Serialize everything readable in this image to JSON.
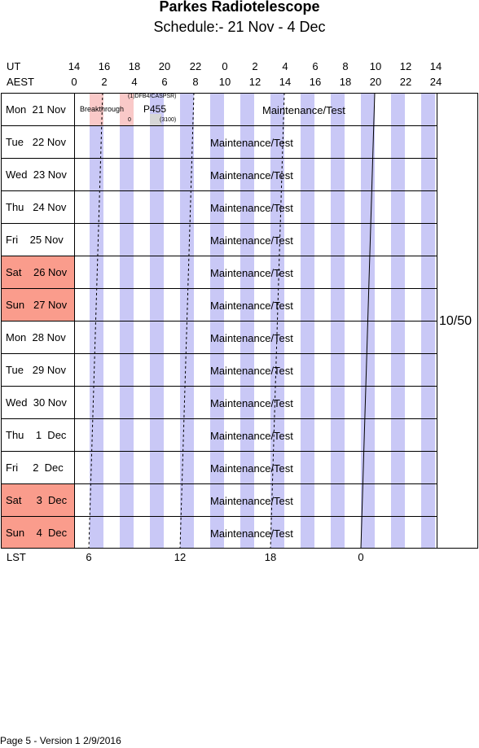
{
  "header": {
    "title": "Parkes Radiotelescope",
    "subtitle": "Schedule:- 21 Nov - 4  Dec"
  },
  "axes": {
    "ut_label": "UT",
    "aest_label": "AEST",
    "lst_label": "LST",
    "ut_ticks": [
      "14",
      "16",
      "18",
      "20",
      "22",
      "0",
      "2",
      "4",
      "6",
      "8",
      "10",
      "12",
      "14"
    ],
    "aest_ticks": [
      "0",
      "2",
      "4",
      "6",
      "8",
      "10",
      "12",
      "14",
      "16",
      "18",
      "20",
      "22",
      "24"
    ],
    "lst_ticks": [
      "6",
      "12",
      "18",
      "0"
    ]
  },
  "rows": [
    {
      "label": "Mon  21 Nov",
      "weekend": false,
      "activity": "Maintenance/Test"
    },
    {
      "label": "Tue   22 Nov",
      "weekend": false,
      "activity": "Maintenance/Test"
    },
    {
      "label": "Wed  23 Nov",
      "weekend": false,
      "activity": "Maintenance/Test"
    },
    {
      "label": "Thu   24 Nov",
      "weekend": false,
      "activity": "Maintenance/Test"
    },
    {
      "label": "Fri    25 Nov",
      "weekend": false,
      "activity": "Maintenance/Test"
    },
    {
      "label": "Sat    26 Nov",
      "weekend": true,
      "activity": "Maintenance/Test"
    },
    {
      "label": "Sun   27 Nov",
      "weekend": true,
      "activity": "Maintenance/Test"
    },
    {
      "label": "Mon  28 Nov",
      "weekend": false,
      "activity": "Maintenance/Test"
    },
    {
      "label": "Tue   29 Nov",
      "weekend": false,
      "activity": "Maintenance/Test"
    },
    {
      "label": "Wed  30 Nov",
      "weekend": false,
      "activity": "Maintenance/Test"
    },
    {
      "label": "Thu    1  Dec",
      "weekend": false,
      "activity": "Maintenance/Test"
    },
    {
      "label": "Fri     2  Dec",
      "weekend": false,
      "activity": "Maintenance/Test"
    },
    {
      "label": "Sat     3  Dec",
      "weekend": true,
      "activity": "Maintenance/Test"
    },
    {
      "label": "Sun    4  Dec",
      "weekend": true,
      "activity": "Maintenance/Test"
    }
  ],
  "first_row_blocks": {
    "breakthrough": "Breakthrough",
    "breakthrough_note": "0",
    "p455": "P455",
    "p455_top": "(1)DFB4/CASPSR)",
    "p455_bottom": "(3100)"
  },
  "side_count": "10/50",
  "footer": "Page 5 - Version 1  2/9/2016",
  "colors": {
    "weekend": "#fa9c8c",
    "stripe": "#c9c8f6",
    "pink": "#f9c9c8"
  }
}
